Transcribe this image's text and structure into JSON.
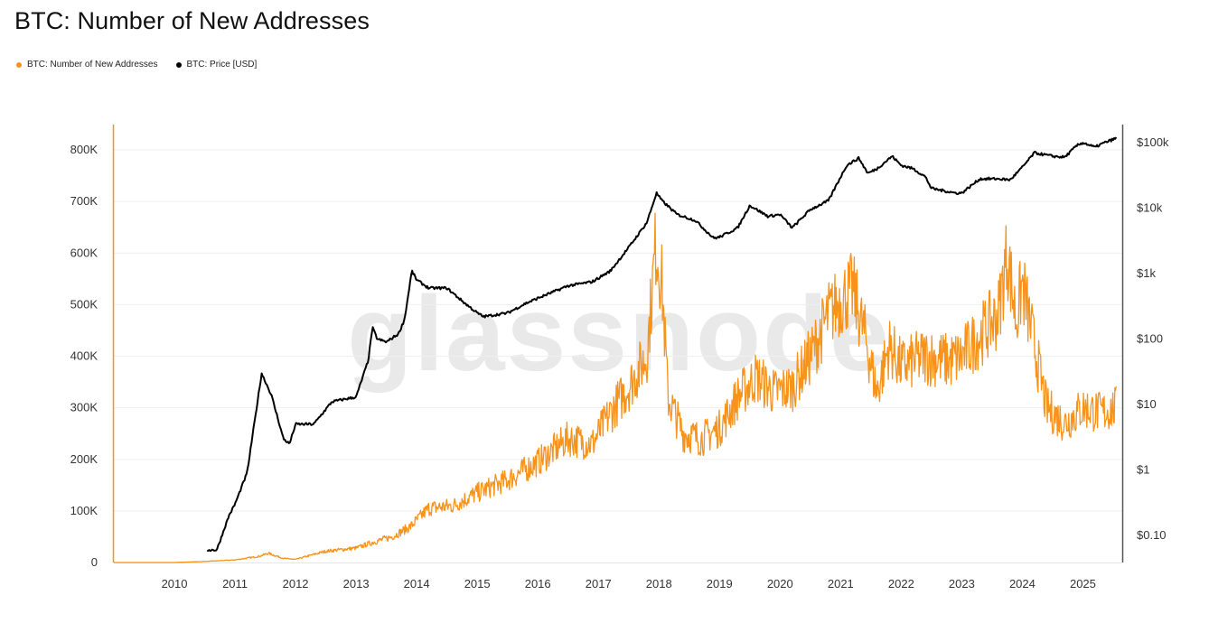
{
  "page": {
    "title": "BTC: Number of New Addresses",
    "watermark": "glassnode"
  },
  "legend": [
    {
      "label": "BTC: Number of New Addresses",
      "color": "#f7931a"
    },
    {
      "label": "BTC: Price [USD]",
      "color": "#000000"
    }
  ],
  "chart_data": {
    "type": "line",
    "title": "BTC: Number of New Addresses",
    "x_range": [
      2009.0,
      2025.65
    ],
    "x_ticks": [
      "2010",
      "2011",
      "2012",
      "2013",
      "2014",
      "2015",
      "2016",
      "2017",
      "2018",
      "2019",
      "2020",
      "2021",
      "2022",
      "2023",
      "2024",
      "2025"
    ],
    "y_left": {
      "range": [
        0,
        800000
      ],
      "ticks": [
        0,
        100000,
        200000,
        300000,
        400000,
        500000,
        600000,
        700000,
        800000
      ],
      "tick_labels": [
        "0",
        "100K",
        "200K",
        "300K",
        "400K",
        "500K",
        "600K",
        "700K",
        "800K"
      ],
      "color": "#f7931a"
    },
    "y_right": {
      "scale": "log",
      "range": [
        0.03,
        200000
      ],
      "ticks": [
        0.1,
        1,
        10,
        100,
        1000,
        10000,
        100000
      ],
      "tick_labels": [
        "$0.10",
        "$1",
        "$10",
        "$100",
        "$1k",
        "$10k",
        "$100k"
      ],
      "color": "#555555"
    },
    "series": [
      {
        "name": "BTC: Number of New Addresses",
        "axis": "left",
        "color": "#f7931a",
        "noise": 0.09,
        "x": [
          2009.0,
          2010.0,
          2010.5,
          2011.0,
          2011.4,
          2011.55,
          2011.8,
          2012.0,
          2012.5,
          2013.0,
          2013.3,
          2013.6,
          2013.9,
          2014.2,
          2014.6,
          2015.0,
          2015.5,
          2016.0,
          2016.5,
          2016.9,
          2017.2,
          2017.5,
          2017.8,
          2017.95,
          2018.05,
          2018.15,
          2018.4,
          2018.7,
          2019.0,
          2019.3,
          2019.6,
          2019.9,
          2020.2,
          2020.5,
          2020.8,
          2021.0,
          2021.2,
          2021.4,
          2021.6,
          2021.8,
          2022.0,
          2022.4,
          2022.8,
          2023.0,
          2023.3,
          2023.6,
          2023.75,
          2023.9,
          2024.0,
          2024.2,
          2024.4,
          2024.7,
          2025.0,
          2025.3,
          2025.55
        ],
        "values": [
          0,
          0,
          2000,
          5000,
          12000,
          18000,
          8000,
          6000,
          22000,
          28000,
          40000,
          50000,
          70000,
          105000,
          110000,
          135000,
          160000,
          195000,
          240000,
          230000,
          290000,
          340000,
          400000,
          620000,
          540000,
          320000,
          250000,
          240000,
          260000,
          320000,
          360000,
          330000,
          340000,
          400000,
          480000,
          510000,
          530000,
          440000,
          330000,
          420000,
          380000,
          400000,
          390000,
          400000,
          440000,
          480000,
          600000,
          470000,
          540000,
          420000,
          300000,
          270000,
          300000,
          290000,
          300000
        ]
      },
      {
        "name": "BTC: Price [USD]",
        "axis": "right",
        "color": "#000000",
        "noise": 0.04,
        "x": [
          2010.54,
          2010.7,
          2010.9,
          2011.0,
          2011.2,
          2011.35,
          2011.44,
          2011.6,
          2011.8,
          2011.9,
          2012.0,
          2012.3,
          2012.6,
          2012.8,
          2013.0,
          2013.2,
          2013.27,
          2013.35,
          2013.5,
          2013.7,
          2013.8,
          2013.92,
          2014.0,
          2014.2,
          2014.5,
          2014.8,
          2015.0,
          2015.1,
          2015.5,
          2015.8,
          2016.0,
          2016.5,
          2016.9,
          2017.2,
          2017.5,
          2017.8,
          2017.96,
          2018.05,
          2018.3,
          2018.6,
          2018.9,
          2019.0,
          2019.3,
          2019.5,
          2019.8,
          2020.0,
          2020.2,
          2020.5,
          2020.8,
          2021.0,
          2021.1,
          2021.3,
          2021.45,
          2021.6,
          2021.85,
          2022.0,
          2022.2,
          2022.4,
          2022.5,
          2022.9,
          2023.0,
          2023.3,
          2023.6,
          2023.8,
          2024.0,
          2024.2,
          2024.5,
          2024.7,
          2024.9,
          2025.0,
          2025.2,
          2025.3,
          2025.55
        ],
        "values": [
          0.06,
          0.06,
          0.2,
          0.3,
          0.9,
          8,
          30,
          14,
          3,
          2.5,
          5,
          5,
          11,
          12,
          13,
          47,
          150,
          100,
          90,
          120,
          200,
          1100,
          800,
          600,
          600,
          350,
          250,
          220,
          250,
          350,
          420,
          650,
          750,
          1100,
          2500,
          6000,
          17000,
          13000,
          8000,
          6500,
          3500,
          3600,
          5000,
          11000,
          7500,
          8000,
          5000,
          9500,
          13000,
          30000,
          45000,
          58000,
          34000,
          40000,
          62000,
          45000,
          40000,
          30000,
          20000,
          17000,
          17000,
          28000,
          28000,
          27000,
          42000,
          70000,
          62000,
          60000,
          90000,
          100000,
          85000,
          95000,
          117000
        ]
      }
    ]
  }
}
